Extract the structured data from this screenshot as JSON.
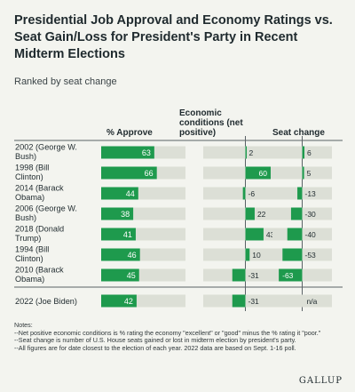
{
  "title": "Presidential Job Approval and Economy Ratings vs. Seat Gain/Loss for President's Party in Recent Midterm Elections",
  "subtitle": "Ranked by seat change",
  "colors": {
    "bar": "#1e9a4d",
    "track": "#dcdfd6",
    "background": "#f3f4ef",
    "divider": "#5a6266"
  },
  "chart_data": {
    "type": "bar",
    "columns": [
      {
        "key": "approve",
        "label": "% Approve",
        "range": [
          0,
          100
        ]
      },
      {
        "key": "economy",
        "label": "Economic conditions (net positive)",
        "range": [
          -100,
          100
        ]
      },
      {
        "key": "seats",
        "label": "Seat change",
        "range": [
          -80,
          80
        ]
      }
    ],
    "rows": [
      {
        "label": "2002 (George W. Bush)",
        "approve": 63,
        "economy": 2,
        "seats": 6,
        "approve_label": "63",
        "economy_label": "2",
        "seats_label": "6"
      },
      {
        "label": "1998 (Bill Clinton)",
        "approve": 66,
        "economy": 60,
        "seats": 5,
        "approve_label": "66",
        "economy_label": "60",
        "seats_label": "5"
      },
      {
        "label": "2014 (Barack Obama)",
        "approve": 44,
        "economy": -6,
        "seats": -13,
        "approve_label": "44",
        "economy_label": "-6",
        "seats_label": "-13"
      },
      {
        "label": "2006 (George W. Bush)",
        "approve": 38,
        "economy": 22,
        "seats": -30,
        "approve_label": "38",
        "economy_label": "22",
        "seats_label": "-30"
      },
      {
        "label": "2018 (Donald Trump)",
        "approve": 41,
        "economy": 43,
        "seats": -40,
        "approve_label": "41",
        "economy_label": "43",
        "seats_label": "-40"
      },
      {
        "label": "1994 (Bill Clinton)",
        "approve": 46,
        "economy": 10,
        "seats": -53,
        "approve_label": "46",
        "economy_label": "10",
        "seats_label": "-53"
      },
      {
        "label": "2010 (Barack Obama)",
        "approve": 45,
        "economy": -31,
        "seats": -63,
        "approve_label": "45",
        "economy_label": "-31",
        "seats_label": "-63"
      },
      {
        "label": "2022 (Joe Biden)",
        "approve": 42,
        "economy": -31,
        "seats": null,
        "approve_label": "42",
        "economy_label": "-31",
        "seats_label": "n/a"
      }
    ]
  },
  "notes": {
    "heading": "Notes:",
    "lines": [
      "--Net positive economic conditions is % rating the economy \"excellent\" or \"good\" minus the % rating it \"poor.\"",
      "--Seat change is number of U.S. House seats gained or lost in midterm election by president's party.",
      "--All figures are for date closest to the election of each year. 2022 data are based on Sept. 1-16 poll."
    ]
  },
  "logo": "GALLUP"
}
